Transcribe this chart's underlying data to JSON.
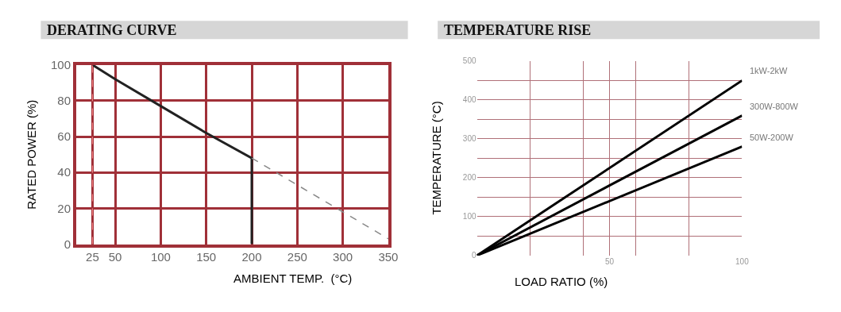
{
  "chart_data": [
    {
      "type": "line",
      "title": "DERATING CURVE",
      "xlabel": "AMBIENT TEMP.  (°C)",
      "ylabel": "RATED POWER (%)",
      "xlim": [
        7,
        350
      ],
      "ylim": [
        0,
        100
      ],
      "xticks": [
        25,
        50,
        100,
        150,
        200,
        250,
        300,
        350
      ],
      "yticks": [
        0,
        20,
        40,
        60,
        80,
        100
      ],
      "grid": true,
      "legend": false,
      "series": [
        {
          "color": "#222222",
          "line_style": "solid",
          "x": [
            25,
            50,
            100,
            150,
            200,
            200
          ],
          "values": [
            100,
            92,
            77,
            62,
            48,
            0
          ]
        },
        {
          "color": "#888888",
          "line_style": "dashed",
          "x": [
            200,
            350
          ],
          "values": [
            48,
            3
          ]
        }
      ],
      "ref_lines": [
        {
          "axis": "x",
          "value": 25,
          "color": "#f08080",
          "line_style": "dashed"
        }
      ]
    },
    {
      "type": "line",
      "title": "TEMPERATURE RISE",
      "xlabel": "LOAD RATIO (%)",
      "ylabel": "TEMPERATURE (°C)",
      "xlim": [
        0,
        100
      ],
      "ylim": [
        0,
        500
      ],
      "xticks": [
        {
          "value": 20,
          "label": null
        },
        {
          "value": 40,
          "label": null
        },
        50,
        {
          "value": 60,
          "label": null
        },
        {
          "value": 80,
          "label": null
        },
        100
      ],
      "yticks": [
        0,
        {
          "value": 50,
          "label": null
        },
        100,
        {
          "value": 150,
          "label": null
        },
        200,
        {
          "value": 250,
          "label": null
        },
        300,
        {
          "value": 350,
          "label": null
        },
        400,
        {
          "value": 450,
          "label": null
        },
        500
      ],
      "grid": true,
      "legend": false,
      "series": [
        {
          "name": "1kW-2kW",
          "color": "#000000",
          "line_style": "solid",
          "x": [
            0,
            100
          ],
          "values": [
            0,
            450
          ]
        },
        {
          "name": "300W-800W",
          "color": "#000000",
          "line_style": "solid",
          "x": [
            0,
            100
          ],
          "values": [
            0,
            360
          ]
        },
        {
          "name": "50W-200W",
          "color": "#000000",
          "line_style": "solid",
          "x": [
            0,
            100
          ],
          "values": [
            0,
            280
          ]
        }
      ]
    }
  ]
}
